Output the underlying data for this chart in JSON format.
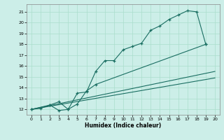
{
  "xlabel": "Humidex (Indice chaleur)",
  "background_color": "#cceee8",
  "grid_color": "#aaddcc",
  "line_color": "#1a6e62",
  "xlim": [
    -0.5,
    20.5
  ],
  "ylim": [
    11.5,
    21.7
  ],
  "xticks": [
    0,
    1,
    2,
    3,
    4,
    5,
    6,
    7,
    8,
    9,
    10,
    11,
    12,
    13,
    14,
    15,
    16,
    17,
    18,
    19,
    20
  ],
  "yticks": [
    12,
    13,
    14,
    15,
    16,
    17,
    18,
    19,
    20,
    21
  ],
  "line1_x": [
    0,
    1,
    2,
    3,
    4,
    5,
    6,
    7,
    8,
    9,
    10,
    11,
    12,
    13,
    14,
    15,
    16,
    17,
    18,
    19
  ],
  "line1_y": [
    12.0,
    12.1,
    12.4,
    11.9,
    12.0,
    13.5,
    13.6,
    15.5,
    16.5,
    16.5,
    17.5,
    17.8,
    18.1,
    19.3,
    19.7,
    20.3,
    20.7,
    21.1,
    21.0,
    18.0
  ],
  "line2_x": [
    0,
    2,
    3,
    4,
    5,
    6,
    7,
    19
  ],
  "line2_y": [
    12.0,
    12.4,
    12.7,
    12.0,
    12.5,
    13.7,
    14.3,
    18.0
  ],
  "line3_x": [
    0,
    20
  ],
  "line3_y": [
    12.0,
    15.5
  ],
  "line4_x": [
    0,
    20
  ],
  "line4_y": [
    12.0,
    14.9
  ]
}
